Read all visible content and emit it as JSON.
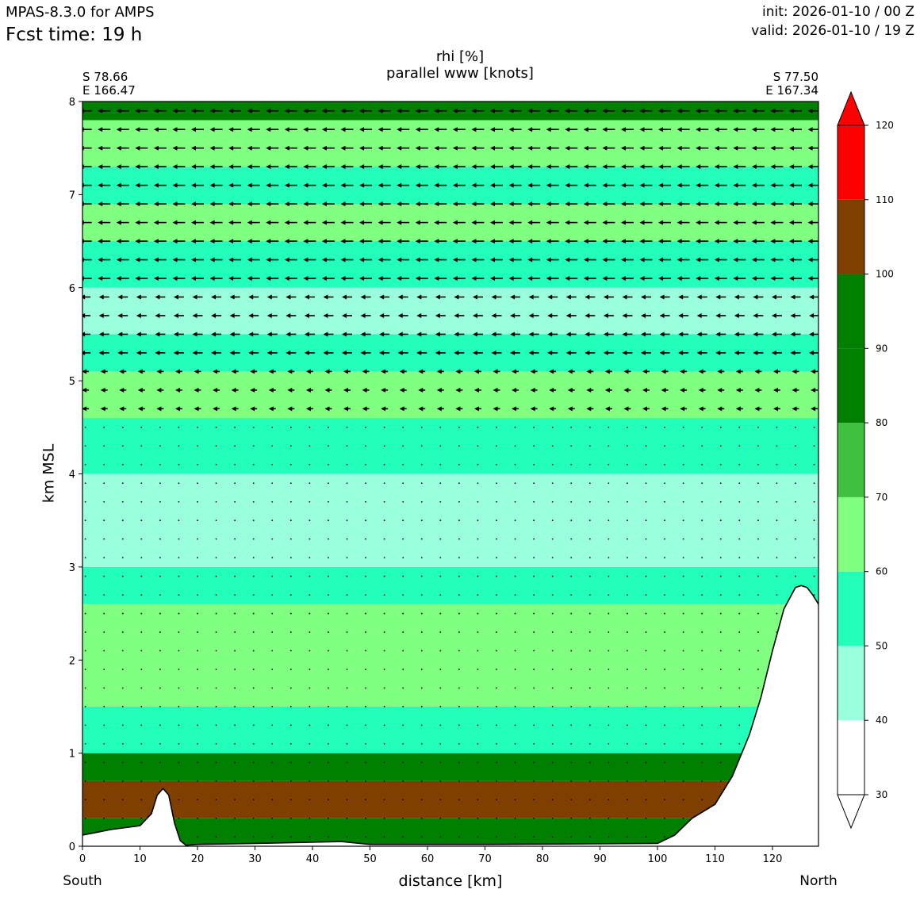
{
  "header": {
    "model": "MPAS-8.3.0 for AMPS",
    "fcst_time": "Fcst time:   19 h",
    "init": "init: 2026-01-10 / 00 Z",
    "valid": "valid: 2026-01-10 / 19 Z"
  },
  "section": {
    "start_lat": "S 78.66",
    "start_lon": "E 166.47",
    "end_lat": "S 77.50",
    "end_lon": "E 167.34",
    "left_direction": "South",
    "right_direction": "North"
  },
  "chart_data": {
    "type": "heatmap",
    "title": "rhi [%]",
    "subtitle": "parallel www [knots]",
    "xlabel": "distance [km]",
    "ylabel": "km MSL",
    "xlim": [
      0,
      128
    ],
    "ylim": [
      0,
      8
    ],
    "x_ticks": [
      0,
      10,
      20,
      30,
      40,
      50,
      60,
      70,
      80,
      90,
      100,
      110,
      120
    ],
    "y_ticks": [
      0,
      1,
      2,
      3,
      4,
      5,
      6,
      7,
      8
    ],
    "colorbar": {
      "levels": [
        30,
        40,
        50,
        60,
        70,
        80,
        90,
        100,
        110,
        120
      ],
      "colors": [
        "#ffffff",
        "#99ffdd",
        "#22ffbb",
        "#80ff80",
        "#40c040",
        "#007f00",
        "#007f00",
        "#7f3f00",
        "#ff0000"
      ],
      "extend": "both"
    },
    "bands": [
      {
        "y": [
          0.0,
          0.3
        ],
        "rhi": 85
      },
      {
        "y": [
          0.3,
          0.7
        ],
        "rhi": 105
      },
      {
        "y": [
          0.7,
          1.0
        ],
        "rhi": 85
      },
      {
        "y": [
          1.0,
          1.5
        ],
        "rhi": 55
      },
      {
        "y": [
          1.5,
          2.3
        ],
        "rhi": 65
      },
      {
        "y": [
          2.3,
          2.6
        ],
        "rhi": 65
      },
      {
        "y": [
          2.6,
          3.0
        ],
        "rhi": 55
      },
      {
        "y": [
          3.0,
          4.0
        ],
        "rhi": 45
      },
      {
        "y": [
          4.0,
          4.6
        ],
        "rhi": 55
      },
      {
        "y": [
          4.6,
          5.1
        ],
        "rhi": 65
      },
      {
        "y": [
          5.1,
          5.5
        ],
        "rhi": 55
      },
      {
        "y": [
          5.5,
          6.0
        ],
        "rhi": 45
      },
      {
        "y": [
          6.0,
          6.5
        ],
        "rhi": 55
      },
      {
        "y": [
          6.5,
          6.9
        ],
        "rhi": 65
      },
      {
        "y": [
          6.9,
          7.3
        ],
        "rhi": 55
      },
      {
        "y": [
          7.3,
          7.8
        ],
        "rhi": 65
      },
      {
        "y": [
          7.8,
          8.0
        ],
        "rhi": 85
      }
    ],
    "terrain": {
      "x": [
        0,
        5,
        10,
        12,
        13,
        14,
        15,
        16,
        17,
        18,
        20,
        30,
        45,
        50,
        70,
        100,
        103,
        106,
        110,
        113,
        116,
        118,
        120,
        122,
        124,
        125,
        126,
        127,
        128
      ],
      "z": [
        0.12,
        0.18,
        0.22,
        0.35,
        0.55,
        0.62,
        0.55,
        0.25,
        0.06,
        0.01,
        0.02,
        0.03,
        0.05,
        0.02,
        0.02,
        0.03,
        0.12,
        0.3,
        0.45,
        0.75,
        1.2,
        1.6,
        2.1,
        2.55,
        2.78,
        2.8,
        2.78,
        2.7,
        2.6
      ]
    },
    "wind_arrow_levels_km": [
      7.9,
      7.7,
      7.5,
      7.3,
      7.1,
      6.9,
      6.7,
      6.5,
      6.3,
      6.1,
      5.9,
      5.7,
      5.5,
      5.3,
      5.1,
      4.9,
      4.7
    ]
  }
}
